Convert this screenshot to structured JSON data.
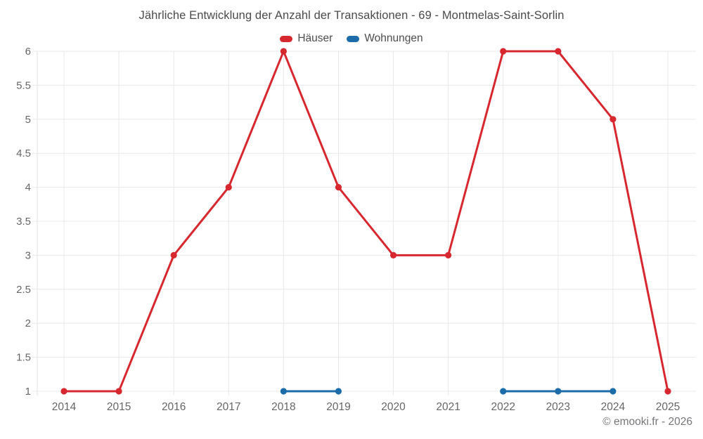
{
  "footer": {
    "text": "© emooki.fr - 2026"
  },
  "chart_data": {
    "type": "line",
    "title": "Jährliche Entwicklung der Anzahl der Transaktionen - 69 - Montmelas-Saint-Sorlin",
    "categories": [
      "2014",
      "2015",
      "2016",
      "2017",
      "2018",
      "2019",
      "2020",
      "2021",
      "2022",
      "2023",
      "2024",
      "2025"
    ],
    "series": [
      {
        "name": "Häuser",
        "color": "#d7282f",
        "values": [
          1,
          1,
          3,
          4,
          6,
          4,
          3,
          3,
          6,
          6,
          5,
          1
        ]
      },
      {
        "name": "Wohnungen",
        "color": "#1b6ca8",
        "values": [
          null,
          null,
          null,
          null,
          1,
          1,
          null,
          null,
          1,
          1,
          1,
          null
        ]
      }
    ],
    "xlabel": "",
    "ylabel": "",
    "ylim": [
      1,
      6
    ],
    "ytick_step": 0.5,
    "yticks": [
      1,
      1.5,
      2,
      2.5,
      3,
      3.5,
      4,
      4.5,
      5,
      5.5,
      6
    ],
    "grid": true,
    "legend_position": "top",
    "colors": {
      "grid": "#e8e8e8",
      "axis": "#e0e0e0",
      "tick_label": "#666666",
      "title_text": "#4a4a4c",
      "footer_text": "#76767a",
      "background": "#ffffff"
    }
  }
}
